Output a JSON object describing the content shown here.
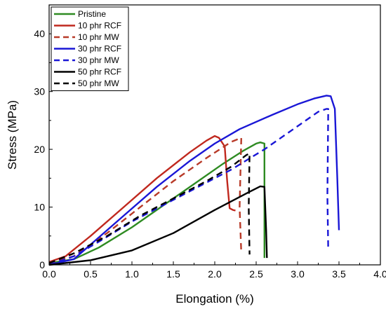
{
  "chart_data": {
    "type": "line",
    "title": "",
    "xlabel": "Elongation (%)",
    "ylabel": "Stress (MPa)",
    "xlim": [
      0.0,
      4.0
    ],
    "ylim": [
      0,
      45
    ],
    "xticks": [
      "0.0",
      "0.5",
      "1.0",
      "1.5",
      "2.0",
      "2.5",
      "3.0",
      "3.5",
      "4.0"
    ],
    "yticks": [
      "0",
      "10",
      "20",
      "30",
      "40"
    ],
    "grid": false,
    "legend_position": "top-left",
    "series": [
      {
        "name": "Pristine",
        "color": "#2e8b22",
        "dash": "solid",
        "x": [
          0.0,
          0.3,
          0.6,
          1.0,
          1.4,
          1.8,
          2.1,
          2.35,
          2.5,
          2.55,
          2.6,
          2.6
        ],
        "y": [
          0.3,
          1.0,
          3.0,
          6.5,
          10.5,
          14.5,
          17.5,
          19.8,
          21.0,
          21.2,
          21.0,
          1.2
        ]
      },
      {
        "name": "10 phr RCF",
        "color": "#c0281e",
        "dash": "solid",
        "x": [
          0.0,
          0.2,
          0.5,
          0.9,
          1.3,
          1.7,
          1.9,
          2.0,
          2.05,
          2.12,
          2.15,
          2.18,
          2.22,
          2.25
        ],
        "y": [
          0.5,
          1.5,
          5.0,
          10.0,
          15.0,
          19.5,
          21.5,
          22.3,
          22.0,
          20.5,
          14.5,
          9.8,
          9.5,
          9.4
        ]
      },
      {
        "name": "10 phr MW",
        "color": "#b83a28",
        "dash": "dashed",
        "x": [
          0.0,
          0.3,
          0.7,
          1.1,
          1.5,
          1.9,
          2.2,
          2.32,
          2.3,
          2.32
        ],
        "y": [
          0.3,
          1.5,
          5.5,
          10.0,
          14.5,
          18.5,
          21.3,
          22.0,
          10.0,
          2.0
        ]
      },
      {
        "name": "30 phr RCF",
        "color": "#1a17d6",
        "dash": "solid",
        "x": [
          0.0,
          0.3,
          0.5,
          0.9,
          1.3,
          1.7,
          2.0,
          2.3,
          2.7,
          3.0,
          3.2,
          3.35,
          3.4,
          3.45,
          3.48,
          3.5
        ],
        "y": [
          0.0,
          1.0,
          3.5,
          8.5,
          13.5,
          18.0,
          21.0,
          23.5,
          26.0,
          27.8,
          28.8,
          29.3,
          29.2,
          27.0,
          15.0,
          6.0
        ]
      },
      {
        "name": "30 phr MW",
        "color": "#1a17d6",
        "dash": "dashed",
        "x": [
          0.0,
          0.3,
          0.6,
          1.0,
          1.4,
          1.8,
          2.2,
          2.6,
          3.0,
          3.25,
          3.35,
          3.37,
          3.36,
          3.37
        ],
        "y": [
          0.0,
          1.5,
          4.0,
          7.5,
          10.5,
          13.5,
          16.5,
          20.0,
          24.0,
          26.5,
          27.0,
          27.0,
          12.0,
          2.5
        ]
      },
      {
        "name": "50 phr RCF",
        "color": "#000000",
        "dash": "solid",
        "x": [
          0.0,
          0.5,
          1.0,
          1.5,
          2.0,
          2.4,
          2.55,
          2.6,
          2.62,
          2.63
        ],
        "y": [
          0.0,
          0.8,
          2.5,
          5.5,
          9.5,
          12.5,
          13.6,
          13.5,
          6.0,
          1.2
        ]
      },
      {
        "name": "50 phr MW",
        "color": "#000000",
        "dash": "dashed",
        "x": [
          0.0,
          0.3,
          0.7,
          1.1,
          1.5,
          1.9,
          2.2,
          2.38,
          2.42,
          2.41,
          2.42
        ],
        "y": [
          0.3,
          2.0,
          5.0,
          8.5,
          11.5,
          14.5,
          17.0,
          19.0,
          19.3,
          10.0,
          1.8
        ]
      }
    ]
  }
}
